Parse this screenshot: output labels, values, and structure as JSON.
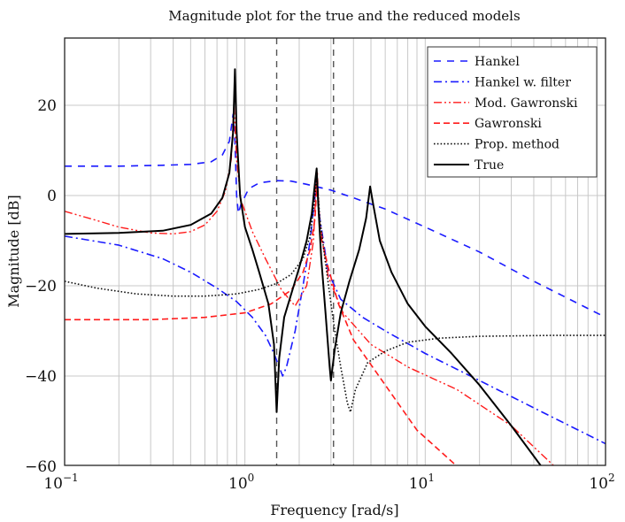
{
  "chart_data": {
    "type": "line",
    "title": "Magnitude plot for the true and the reduced models",
    "xlabel": "Frequency [rad/s]",
    "ylabel": "Magnitude [dB]",
    "xscale": "log",
    "xlim": [
      0.1,
      100
    ],
    "ylim": [
      -60,
      35
    ],
    "xticks": [
      {
        "base": "10",
        "exp": "−1",
        "value": 0.1
      },
      {
        "base": "10",
        "exp": "0",
        "value": 1
      },
      {
        "base": "10",
        "exp": "1",
        "value": 10
      },
      {
        "base": "10",
        "exp": "2",
        "value": 100
      }
    ],
    "yticks": [
      {
        "label": "20",
        "value": 20
      },
      {
        "label": "0",
        "value": 0
      },
      {
        "label": "−20",
        "value": -20
      },
      {
        "label": "−40",
        "value": -40
      },
      {
        "label": "−60",
        "value": -60
      }
    ],
    "grid": true,
    "legend_position": "upper right",
    "vertical_markers": [
      {
        "x": 1.5,
        "style": "dashed",
        "color": "#555555"
      },
      {
        "x": 3.1,
        "style": "dashed",
        "color": "#555555"
      }
    ],
    "series": [
      {
        "name": "Hankel",
        "color": "#1a1aff",
        "dash": "8,7",
        "width": 1.6,
        "points": [
          [
            0.1,
            6.5
          ],
          [
            0.2,
            6.5
          ],
          [
            0.35,
            6.7
          ],
          [
            0.5,
            6.9
          ],
          [
            0.65,
            7.5
          ],
          [
            0.75,
            9
          ],
          [
            0.82,
            12
          ],
          [
            0.86,
            18
          ],
          [
            0.88,
            12
          ],
          [
            0.9,
            0
          ],
          [
            0.92,
            -4
          ],
          [
            0.95,
            -2
          ],
          [
            1.05,
            1.5
          ],
          [
            1.2,
            2.8
          ],
          [
            1.5,
            3.3
          ],
          [
            1.8,
            3.2
          ],
          [
            2.2,
            2.5
          ],
          [
            3,
            1.2
          ],
          [
            4,
            -0.5
          ],
          [
            6,
            -3
          ],
          [
            10,
            -7
          ],
          [
            20,
            -12.5
          ],
          [
            40,
            -19
          ],
          [
            100,
            -27
          ]
        ]
      },
      {
        "name": "Hankel w. filter",
        "color": "#1a1aff",
        "dash": "9,4,2,4",
        "width": 1.6,
        "points": [
          [
            0.1,
            -9
          ],
          [
            0.2,
            -11
          ],
          [
            0.35,
            -14
          ],
          [
            0.5,
            -17
          ],
          [
            0.7,
            -20.5
          ],
          [
            0.9,
            -23.5
          ],
          [
            1.1,
            -27
          ],
          [
            1.3,
            -31
          ],
          [
            1.45,
            -35
          ],
          [
            1.55,
            -38
          ],
          [
            1.62,
            -40
          ],
          [
            1.7,
            -38
          ],
          [
            1.9,
            -30
          ],
          [
            2.1,
            -20
          ],
          [
            2.3,
            -10
          ],
          [
            2.45,
            0
          ],
          [
            2.5,
            3
          ],
          [
            2.6,
            -5
          ],
          [
            2.9,
            -17
          ],
          [
            3.4,
            -23
          ],
          [
            4.5,
            -27
          ],
          [
            6,
            -30
          ],
          [
            10,
            -35
          ],
          [
            20,
            -41
          ],
          [
            50,
            -49
          ],
          [
            100,
            -55
          ]
        ]
      },
      {
        "name": "Mod. Gawronski",
        "color": "#ff1a1a",
        "dash": "9,3,2,3,2,3",
        "width": 1.4,
        "points": [
          [
            0.1,
            -3.5
          ],
          [
            0.15,
            -5.5
          ],
          [
            0.2,
            -7
          ],
          [
            0.3,
            -8.3
          ],
          [
            0.4,
            -8.5
          ],
          [
            0.5,
            -8
          ],
          [
            0.6,
            -6.5
          ],
          [
            0.7,
            -3.5
          ],
          [
            0.78,
            1
          ],
          [
            0.84,
            8
          ],
          [
            0.87,
            20
          ],
          [
            0.9,
            8
          ],
          [
            0.95,
            -1
          ],
          [
            1.1,
            -8
          ],
          [
            1.3,
            -14
          ],
          [
            1.6,
            -21
          ],
          [
            1.9,
            -24.5
          ],
          [
            2.2,
            -20
          ],
          [
            2.4,
            -10
          ],
          [
            2.5,
            5
          ],
          [
            2.6,
            -6
          ],
          [
            2.9,
            -18
          ],
          [
            3.5,
            -26
          ],
          [
            5,
            -33
          ],
          [
            8,
            -38
          ],
          [
            15,
            -43
          ],
          [
            30,
            -51
          ],
          [
            52,
            -60
          ]
        ]
      },
      {
        "name": "Gawronski",
        "color": "#ff1a1a",
        "dash": "7,4",
        "width": 1.6,
        "points": [
          [
            0.1,
            -27.5
          ],
          [
            0.3,
            -27.5
          ],
          [
            0.6,
            -27
          ],
          [
            1,
            -26
          ],
          [
            1.4,
            -24
          ],
          [
            1.8,
            -21
          ],
          [
            2.1,
            -17
          ],
          [
            2.3,
            -12
          ],
          [
            2.45,
            -5
          ],
          [
            2.52,
            5
          ],
          [
            2.6,
            -8
          ],
          [
            2.9,
            -16
          ],
          [
            3.3,
            -24
          ],
          [
            4,
            -32
          ],
          [
            6,
            -42
          ],
          [
            9,
            -52
          ],
          [
            15,
            -60
          ]
        ]
      },
      {
        "name": "Prop. method",
        "color": "#111111",
        "dash": "1.6,2.2",
        "width": 1.6,
        "points": [
          [
            0.1,
            -19
          ],
          [
            0.15,
            -20.5
          ],
          [
            0.25,
            -21.8
          ],
          [
            0.4,
            -22.3
          ],
          [
            0.6,
            -22.3
          ],
          [
            0.9,
            -21.8
          ],
          [
            1.2,
            -20.8
          ],
          [
            1.5,
            -19.5
          ],
          [
            1.8,
            -17.5
          ],
          [
            2.1,
            -14
          ],
          [
            2.3,
            -9
          ],
          [
            2.45,
            0
          ],
          [
            2.5,
            5
          ],
          [
            2.6,
            -5
          ],
          [
            2.8,
            -15
          ],
          [
            3.1,
            -28
          ],
          [
            3.4,
            -38
          ],
          [
            3.7,
            -46
          ],
          [
            3.85,
            -48
          ],
          [
            4.1,
            -43
          ],
          [
            4.8,
            -37
          ],
          [
            6,
            -34.5
          ],
          [
            8,
            -32.5
          ],
          [
            12,
            -31.6
          ],
          [
            20,
            -31.2
          ],
          [
            50,
            -31
          ],
          [
            100,
            -31
          ]
        ]
      },
      {
        "name": "True",
        "color": "#000000",
        "dash": "",
        "width": 2,
        "points": [
          [
            0.1,
            -8.5
          ],
          [
            0.2,
            -8.3
          ],
          [
            0.35,
            -7.8
          ],
          [
            0.5,
            -6.5
          ],
          [
            0.65,
            -4
          ],
          [
            0.75,
            -0.5
          ],
          [
            0.82,
            5
          ],
          [
            0.86,
            14
          ],
          [
            0.88,
            28
          ],
          [
            0.9,
            14
          ],
          [
            0.94,
            0
          ],
          [
            1.0,
            -7
          ],
          [
            1.1,
            -12
          ],
          [
            1.2,
            -17
          ],
          [
            1.35,
            -24
          ],
          [
            1.45,
            -33
          ],
          [
            1.5,
            -48
          ],
          [
            1.55,
            -36
          ],
          [
            1.65,
            -27
          ],
          [
            1.8,
            -22
          ],
          [
            2.0,
            -16
          ],
          [
            2.2,
            -10
          ],
          [
            2.35,
            -4
          ],
          [
            2.45,
            3
          ],
          [
            2.5,
            6
          ],
          [
            2.55,
            -2
          ],
          [
            2.65,
            -14
          ],
          [
            2.8,
            -26
          ],
          [
            2.95,
            -38
          ],
          [
            3.0,
            -41
          ],
          [
            3.15,
            -34
          ],
          [
            3.4,
            -26
          ],
          [
            3.8,
            -19
          ],
          [
            4.3,
            -12
          ],
          [
            4.7,
            -5
          ],
          [
            4.95,
            2
          ],
          [
            5.15,
            -2
          ],
          [
            5.6,
            -10
          ],
          [
            6.5,
            -17
          ],
          [
            8,
            -24
          ],
          [
            10,
            -29
          ],
          [
            14,
            -35
          ],
          [
            20,
            -42
          ],
          [
            30,
            -51
          ],
          [
            44,
            -60
          ]
        ]
      }
    ]
  }
}
